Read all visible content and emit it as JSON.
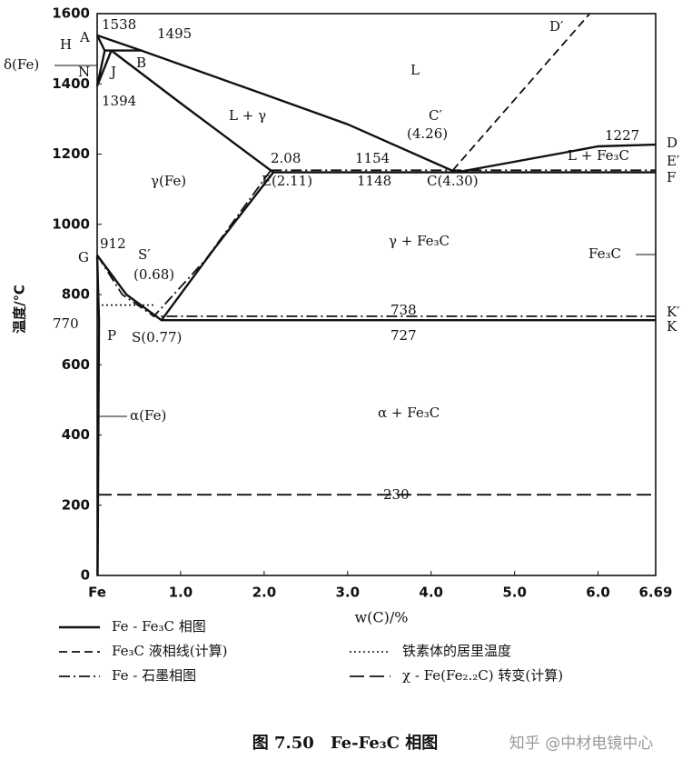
{
  "chart_data": {
    "type": "line",
    "y_label": "温度/℃",
    "x_label": "w(C)/%",
    "caption": "图 7.50　Fe-Fe₃C 相图",
    "watermark": "知乎 @中材电镜中心",
    "xlim": [
      0,
      6.69
    ],
    "xticks": [
      {
        "value": 0,
        "label": "Fe"
      },
      {
        "value": 1,
        "label": "1.0"
      },
      {
        "value": 2,
        "label": "2.0"
      },
      {
        "value": 3,
        "label": "3.0"
      },
      {
        "value": 4,
        "label": "4.0"
      },
      {
        "value": 5,
        "label": "5.0"
      },
      {
        "value": 6,
        "label": "6.0"
      },
      6.69
    ],
    "ylim": [
      0,
      1600
    ],
    "yticks": [
      0,
      200,
      400,
      600,
      800,
      1000,
      1200,
      1400,
      1600
    ],
    "series": [
      {
        "name": "Fe - Fe₃C 相图",
        "color": "#111111",
        "dash": "solid",
        "x": [
          0,
          0.53,
          2.0,
          3.0,
          4.3,
          null,
          0,
          0.09,
          0.53,
          null,
          0.09,
          0,
          0.17,
          null,
          0.17,
          1.0,
          2.11,
          6.69,
          null,
          0,
          0.35,
          0.77,
          6.69,
          null,
          2.11,
          1.4,
          0.77,
          null,
          0,
          0.0218,
          0.005,
          null,
          4.3,
          5.5,
          6.0,
          6.69
        ],
        "values": [
          1538,
          1495,
          1370,
          1285,
          1148,
          null,
          1538,
          1495,
          1495,
          null,
          1495,
          1394,
          1495,
          null,
          1495,
          1345,
          1148,
          1148,
          null,
          912,
          800,
          727,
          727,
          null,
          1148,
          930,
          727,
          null,
          912,
          727,
          0,
          null,
          1148,
          1200,
          1222,
          1227
        ]
      },
      {
        "name": "Fe₃C 液相线(计算)",
        "color": "#111111",
        "dash": "dashed",
        "x": [
          4.26,
          5.9
        ],
        "values": [
          1154,
          1600
        ]
      },
      {
        "name": "Fe - 石墨相图",
        "color": "#111111",
        "dash": "dashdot",
        "x": [
          2.08,
          6.69,
          null,
          2.08,
          1.3,
          0.68,
          6.69,
          null,
          0,
          0.3,
          0.68
        ],
        "values": [
          1154,
          1154,
          null,
          1154,
          900,
          738,
          738,
          null,
          912,
          800,
          738
        ]
      },
      {
        "name": "铁素体的居里温度",
        "color": "#111111",
        "dash": "dotted",
        "x": [
          0,
          0.7
        ],
        "values": [
          770,
          770
        ]
      },
      {
        "name": "χ - Fe(Fe₂.₂C) 转变(计算)",
        "color": "#111111",
        "dash": "longdash",
        "x": [
          0,
          6.69
        ],
        "values": [
          230,
          230
        ]
      }
    ],
    "annotations": [
      "A",
      "H",
      "δ(Fe)",
      "N",
      "J",
      "B",
      "1538",
      "1495",
      "1394",
      "L",
      "L + γ",
      "C′",
      "(4.26)",
      "D′",
      "1227",
      "D",
      "E′",
      "F",
      "L + Fe₃C",
      "2.08",
      "1154",
      "γ(Fe)",
      "E(2.11)",
      "1148",
      "C(4.30)",
      "G",
      "912",
      "S′",
      "(0.68)",
      "γ + Fe₃C",
      "Fe₃C",
      "738",
      "K′",
      "K",
      "770",
      "P",
      "S(0.77)",
      "727",
      "α(Fe)",
      "α + Fe₃C",
      "230"
    ]
  }
}
